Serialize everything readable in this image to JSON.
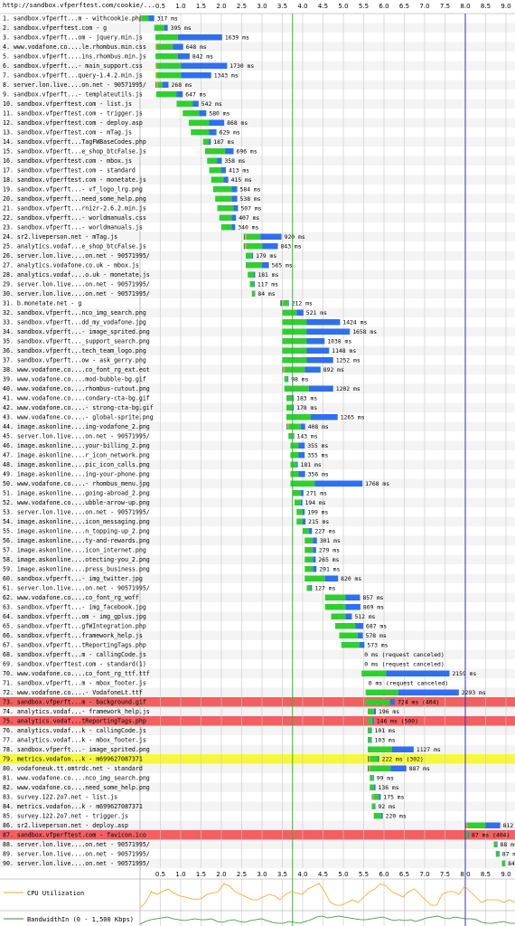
{
  "page_url": "http://sandbox.vfperftest.com/cookie/...",
  "timeline": {
    "ticks": [
      "0.5",
      "1.0",
      "1.5",
      "2.0",
      "2.5",
      "3.0",
      "3.5",
      "4.0",
      "4.5",
      "5.0",
      "5.5",
      "6.0",
      "6.5",
      "7.0",
      "7.5",
      "8.0",
      "8.5",
      "9.0"
    ],
    "start_render_s": 3.75,
    "doc_complete_s": 8.0,
    "max_s": 9.1
  },
  "colors": {
    "dns": "#1f8f8f",
    "connect": "#f7a21b",
    "ssl": "#b44ac8",
    "ttfb": "#2fcf2f",
    "download": "#2f6ff0",
    "error_row": "#f26060",
    "redirect_row": "#f7f740",
    "start_render_line": "#2fb82f",
    "doc_complete_line": "#2f2fb8",
    "cpu": "#f7a21b",
    "bandwidth": "#2f8f2f"
  },
  "chart_data": {
    "type": "waterfall",
    "x_unit": "s",
    "requests": [
      {
        "n": "1.",
        "label": "sandbox.vfperft...m - withcookie.php",
        "start": 0.0,
        "ttfb": 0.17,
        "dl": 0.14,
        "dns": 0.02,
        "con": 0.02,
        "dur": "317 ms"
      },
      {
        "n": "2.",
        "label": "sandbox.vfperftest.com - g",
        "start": 0.35,
        "ttfb": 0.25,
        "dl": 0.08,
        "dur": "395 ms"
      },
      {
        "n": "3.",
        "label": "sandbox.vfperft...om - jquery.min.js",
        "start": 0.38,
        "ttfb": 0.55,
        "dl": 1.09,
        "dur": "1639 ms"
      },
      {
        "n": "4.",
        "label": "www.vodafone.co....le.rhombus.min.css",
        "start": 0.38,
        "ttfb": 0.4,
        "dl": 0.25,
        "con": 0.03,
        "dur": "648 ms"
      },
      {
        "n": "5.",
        "label": "sandbox.vfperft....ins.rhombus.min.js",
        "start": 0.38,
        "ttfb": 0.55,
        "dl": 0.29,
        "dur": "842 ms"
      },
      {
        "n": "6.",
        "label": "sandbox.vfperft...- main_support.css",
        "start": 0.38,
        "ttfb": 0.6,
        "dl": 1.13,
        "con": 0.03,
        "dur": "1730 ms"
      },
      {
        "n": "7.",
        "label": "sandbox.vfperft...query-1.4.2.min.js",
        "start": 0.38,
        "ttfb": 0.6,
        "dl": 0.74,
        "con": 0.03,
        "dur": "1343 ms"
      },
      {
        "n": "8.",
        "label": "server.lon.live....on.net - 90571995/",
        "start": 0.38,
        "ttfb": 0.12,
        "dl": 0.15,
        "dns": 0.02,
        "con": 0.03,
        "dur": "268 ms"
      },
      {
        "n": "9.",
        "label": "sandbox.vfperft...- templateutils.js",
        "start": 0.4,
        "ttfb": 0.5,
        "dl": 0.15,
        "dur": "647 ms"
      },
      {
        "n": "10.",
        "label": "sandbox.vfperftest.com - list.js",
        "start": 0.9,
        "ttfb": 0.4,
        "dl": 0.14,
        "dur": "542 ms"
      },
      {
        "n": "11.",
        "label": "sandbox.vfperftest.com - trigger.js",
        "start": 1.05,
        "ttfb": 0.4,
        "dl": 0.18,
        "dur": "580 ms"
      },
      {
        "n": "12.",
        "label": "sandbox.vfperftest.com - deploy.asp",
        "start": 1.2,
        "ttfb": 0.5,
        "dl": 0.37,
        "dur": "868 ms"
      },
      {
        "n": "13.",
        "label": "sandbox.vfperftest.com - mTag.js",
        "start": 1.25,
        "ttfb": 0.45,
        "dl": 0.18,
        "dur": "629 ms"
      },
      {
        "n": "14.",
        "label": "sandbox.vfperft...TagFWBaseCodes.php",
        "start": 1.55,
        "ttfb": 0.15,
        "dl": 0.04,
        "dur": "187 ms"
      },
      {
        "n": "15.",
        "label": "sandbox.vfperft...e_shop_btcFalse.js",
        "start": 1.6,
        "ttfb": 0.5,
        "dl": 0.2,
        "dur": "696 ms"
      },
      {
        "n": "16.",
        "label": "sandbox.vfperftest.com - mbox.js",
        "start": 1.65,
        "ttfb": 0.25,
        "dl": 0.11,
        "dur": "358 ms"
      },
      {
        "n": "17.",
        "label": "sandbox.vfperftest.com - standard",
        "start": 1.7,
        "ttfb": 0.3,
        "dl": 0.11,
        "dur": "413 ms"
      },
      {
        "n": "18.",
        "label": "sandbox.vfperftest.com - monetate.js",
        "start": 1.75,
        "ttfb": 0.3,
        "dl": 0.12,
        "dur": "415 ms"
      },
      {
        "n": "19.",
        "label": "sandbox.vfperft...- vf_logo_lrg.png",
        "start": 1.8,
        "ttfb": 0.45,
        "dl": 0.14,
        "dur": "584 ms"
      },
      {
        "n": "20.",
        "label": "sandbox.vfperft...need_some_help.png",
        "start": 1.85,
        "ttfb": 0.4,
        "dl": 0.14,
        "dur": "538 ms"
      },
      {
        "n": "21.",
        "label": "sandbox.vfperft...rnizr-2.6.2.min.js",
        "start": 1.9,
        "ttfb": 0.4,
        "dl": 0.11,
        "dur": "507 ms"
      },
      {
        "n": "22.",
        "label": "sandbox.vfperft...- worldmanuals.css",
        "start": 1.95,
        "ttfb": 0.3,
        "dl": 0.11,
        "dur": "407 ms"
      },
      {
        "n": "23.",
        "label": "sandbox.vfperft...- worldmanuals.js",
        "start": 2.0,
        "ttfb": 0.25,
        "dl": 0.09,
        "dur": "340 ms"
      },
      {
        "n": "24.",
        "label": "sr2.liveperson.net - mTag.js",
        "start": 2.55,
        "ttfb": 0.35,
        "dl": 0.52,
        "dns": 0.03,
        "con": 0.03,
        "dur": "920 ms"
      },
      {
        "n": "25.",
        "label": "analytics.vodaf...e_shop_btcFalse.js",
        "start": 2.55,
        "ttfb": 0.4,
        "dl": 0.38,
        "dns": 0.03,
        "con": 0.03,
        "dur": "843 ms"
      },
      {
        "n": "26.",
        "label": "server.lon.live....on.net - 90571995/",
        "start": 2.6,
        "ttfb": 0.15,
        "dl": 0.03,
        "dur": "179 ms"
      },
      {
        "n": "27.",
        "label": "analytics.vodafone.co.uk - mbox.js",
        "start": 2.6,
        "ttfb": 0.4,
        "dl": 0.17,
        "dur": "565 ms"
      },
      {
        "n": "28.",
        "label": "analytics.vodaf....o.uk - monetate.js",
        "start": 2.65,
        "ttfb": 0.15,
        "dl": 0.03,
        "dur": "181 ms"
      },
      {
        "n": "29.",
        "label": "server.lon.live....on.net - 90571995/",
        "start": 2.7,
        "ttfb": 0.1,
        "dl": 0.02,
        "dur": "117 ms"
      },
      {
        "n": "30.",
        "label": "server.lon.live....on.net - 90571995/",
        "start": 2.75,
        "ttfb": 0.07,
        "dl": 0.01,
        "dur": "84 ms"
      },
      {
        "n": "31.",
        "label": "b.monetate.net - g",
        "start": 3.45,
        "ttfb": 0.12,
        "dl": 0.02,
        "dns": 0.04,
        "con": 0.03,
        "dur": "212 ms"
      },
      {
        "n": "32.",
        "label": "sandbox.vfperft...nco_img_search.png",
        "start": 3.5,
        "ttfb": 0.35,
        "dl": 0.17,
        "dur": "521 ms"
      },
      {
        "n": "33.",
        "label": "sandbox.vfperft...dd_my_vodafone.jpg",
        "start": 3.5,
        "ttfb": 0.6,
        "dl": 0.82,
        "dur": "1424 ms"
      },
      {
        "n": "34.",
        "label": "sandbox.vfperft...- image_sprited.png",
        "start": 3.5,
        "ttfb": 0.6,
        "dl": 1.06,
        "dur": "1658 ms"
      },
      {
        "n": "35.",
        "label": "sandbox.vfperft..._support_search.png",
        "start": 3.5,
        "ttfb": 0.6,
        "dl": 0.44,
        "dur": "1038 ms"
      },
      {
        "n": "36.",
        "label": "sandbox.vfperft...tech_team_logo.png",
        "start": 3.5,
        "ttfb": 0.6,
        "dl": 0.55,
        "dur": "1148 ms"
      },
      {
        "n": "37.",
        "label": "sandbox.vfperft...ow - ask_gerry.png",
        "start": 3.5,
        "ttfb": 0.6,
        "dl": 0.65,
        "dur": "1252 ms"
      },
      {
        "n": "38.",
        "label": "www.vodafone.co....co_font_rg_ext.eot",
        "start": 3.5,
        "ttfb": 0.5,
        "dl": 0.39,
        "dns": 0.02,
        "con": 0.03,
        "dur": "892 ms"
      },
      {
        "n": "39.",
        "label": "www.vodafone.co....mod-bubble-bg.gif",
        "start": 3.55,
        "ttfb": 0.08,
        "dl": 0.02,
        "dur": "98 ms"
      },
      {
        "n": "40.",
        "label": "www.vodafone.co....rhombus-cutout.png",
        "start": 3.55,
        "ttfb": 0.6,
        "dl": 0.6,
        "dur": "1202 ms"
      },
      {
        "n": "41.",
        "label": "www.vodafone.co....condary-cta-bg.gif",
        "start": 3.6,
        "ttfb": 0.15,
        "dl": 0.03,
        "dur": "183 ms"
      },
      {
        "n": "42.",
        "label": "www.vodafone.co....- strong-cta-bg.gif",
        "start": 3.6,
        "ttfb": 0.15,
        "dl": 0.03,
        "dur": "178 ms"
      },
      {
        "n": "43.",
        "label": "www.vodafone.co....- global-sprite.png",
        "start": 3.6,
        "ttfb": 0.6,
        "dl": 0.66,
        "dur": "1265 ms"
      },
      {
        "n": "44.",
        "label": "image.askonline....ing-vodafone_2.png",
        "start": 3.6,
        "ttfb": 0.3,
        "dl": 0.11,
        "dns": 0.02,
        "con": 0.03,
        "dur": "408 ms"
      },
      {
        "n": "45.",
        "label": "server.lon.live....on.net - 90571995/",
        "start": 3.65,
        "ttfb": 0.12,
        "dl": 0.02,
        "dur": "143 ms"
      },
      {
        "n": "46.",
        "label": "image.askonline....your-billing_2.png",
        "start": 3.7,
        "ttfb": 0.2,
        "dl": 0.15,
        "dur": "355 ms"
      },
      {
        "n": "47.",
        "label": "image.askonline....r_icon_network.png",
        "start": 3.7,
        "ttfb": 0.2,
        "dl": 0.15,
        "dur": "355 ms"
      },
      {
        "n": "48.",
        "label": "image.askonline....pic_icon_calls.png",
        "start": 3.7,
        "ttfb": 0.15,
        "dl": 0.03,
        "dur": "181 ms"
      },
      {
        "n": "49.",
        "label": "image.askonline....ing-your-phone.png",
        "start": 3.7,
        "ttfb": 0.2,
        "dl": 0.16,
        "dur": "356 ms"
      },
      {
        "n": "50.",
        "label": "www.vodafone.co....- rhombus_menu.jpg",
        "start": 3.7,
        "ttfb": 0.6,
        "dl": 1.17,
        "dur": "1768 ms"
      },
      {
        "n": "51.",
        "label": "image.askonline....going-abroad_2.png",
        "start": 3.75,
        "ttfb": 0.2,
        "dl": 0.07,
        "dur": "271 ms"
      },
      {
        "n": "52.",
        "label": "www.vodafone.co....ubble-arrow-up.png",
        "start": 3.8,
        "ttfb": 0.15,
        "dl": 0.04,
        "dur": "194 ms"
      },
      {
        "n": "53.",
        "label": "server.lon.live....on.net - 90571995/",
        "start": 3.85,
        "ttfb": 0.15,
        "dl": 0.05,
        "dur": "199 ms"
      },
      {
        "n": "54.",
        "label": "image.askonline....icon_messaging.png",
        "start": 3.85,
        "ttfb": 0.15,
        "dl": 0.07,
        "dur": "215 ms"
      },
      {
        "n": "55.",
        "label": "image.askonline....n_topping-up_2.png",
        "start": 4.0,
        "ttfb": 0.15,
        "dl": 0.08,
        "dur": "227 ms"
      },
      {
        "n": "56.",
        "label": "image.askonline....ty-and-rewards.png",
        "start": 4.05,
        "ttfb": 0.2,
        "dl": 0.1,
        "dur": "301 ms"
      },
      {
        "n": "57.",
        "label": "image.askonline....icon_internet.png",
        "start": 4.05,
        "ttfb": 0.2,
        "dl": 0.08,
        "dur": "279 ms"
      },
      {
        "n": "58.",
        "label": "image.askonline....otecting-you_2.png",
        "start": 4.05,
        "ttfb": 0.2,
        "dl": 0.07,
        "dur": "265 ms"
      },
      {
        "n": "59.",
        "label": "image.askonline....press_business.png",
        "start": 4.05,
        "ttfb": 0.2,
        "dl": 0.09,
        "dur": "291 ms"
      },
      {
        "n": "60.",
        "label": "sandbox.vfperft...- img_twitter.jpg",
        "start": 4.05,
        "ttfb": 0.5,
        "dl": 0.32,
        "dur": "820 ms"
      },
      {
        "n": "61.",
        "label": "server.lon.live....on.net - 90571995/",
        "start": 4.1,
        "ttfb": 0.1,
        "dl": 0.03,
        "dur": "127 ms"
      },
      {
        "n": "62.",
        "label": "www.vodafone.co....co_font_rg_woff",
        "start": 4.55,
        "ttfb": 0.5,
        "dl": 0.36,
        "dur": "857 ms"
      },
      {
        "n": "63.",
        "label": "sandbox.vfperft...- img_facebook.jpg",
        "start": 4.55,
        "ttfb": 0.5,
        "dl": 0.37,
        "dur": "869 ms"
      },
      {
        "n": "64.",
        "label": "sandbox.vfperft...om - img_gplus.jpg",
        "start": 4.7,
        "ttfb": 0.35,
        "dl": 0.16,
        "dur": "512 ms"
      },
      {
        "n": "65.",
        "label": "sandbox.vfperft...gfWIntegration.php",
        "start": 4.8,
        "ttfb": 0.5,
        "dl": 0.19,
        "dur": "687 ms"
      },
      {
        "n": "66.",
        "label": "sandbox.vfperft...framework_help.js",
        "start": 4.9,
        "ttfb": 0.45,
        "dl": 0.13,
        "dur": "578 ms"
      },
      {
        "n": "67.",
        "label": "sandbox.vfperft...tReportingTags.php",
        "start": 4.95,
        "ttfb": 0.45,
        "dl": 0.12,
        "dur": "573 ms"
      },
      {
        "n": "68.",
        "label": "sandbox.vfperft...m - callingCode.js",
        "start": 5.45,
        "ttfb": 0,
        "dl": 0,
        "dur": "0 ms (request canceled)"
      },
      {
        "n": "69.",
        "label": "sandbox.vfperftest.com - standard(1)",
        "start": 5.45,
        "ttfb": 0,
        "dl": 0,
        "dur": "0 ms (request canceled)"
      },
      {
        "n": "70.",
        "label": "www.vodafone.co....co_font_rg_ttf.ttf",
        "start": 5.45,
        "ttfb": 0.6,
        "dl": 1.56,
        "dur": "2159 ms"
      },
      {
        "n": "71.",
        "label": "sandbox.vfperft...m - mbox_footer.js",
        "start": 5.55,
        "ttfb": 0,
        "dl": 0,
        "dur": "0 ms (request canceled)"
      },
      {
        "n": "72.",
        "label": "www.vodafone.co....- VodafoneLt.ttf",
        "start": 5.55,
        "ttfb": 0.8,
        "dl": 1.49,
        "dur": "2293 ms"
      },
      {
        "n": "73.",
        "label": "sandbox.vfperft...m - background.gif",
        "start": 5.55,
        "ttfb": 0.6,
        "dl": 0.12,
        "dur": "724 ms (404)",
        "row": "error"
      },
      {
        "n": "74.",
        "label": "analytics.vodaf...- framework_help.js",
        "start": 5.6,
        "ttfb": 0.15,
        "dl": 0.05,
        "dur": "196 ms"
      },
      {
        "n": "75.",
        "label": "analytics.vodaf...tReportingTags.php",
        "start": 5.6,
        "ttfb": 0.12,
        "dl": 0.03,
        "dur": "146 ms (500)",
        "row": "error"
      },
      {
        "n": "76.",
        "label": "analytics.vodaf...k - callingCode.js",
        "start": 5.6,
        "ttfb": 0.08,
        "dl": 0.02,
        "dur": "101 ms"
      },
      {
        "n": "77.",
        "label": "analytics.vodaf...k - mbox_footer.js",
        "start": 5.6,
        "ttfb": 0.08,
        "dl": 0.02,
        "dur": "103 ms"
      },
      {
        "n": "78.",
        "label": "sandbox.vfperft...- image_sprited.png",
        "start": 5.6,
        "ttfb": 0.6,
        "dl": 0.53,
        "dur": "1127 ms"
      },
      {
        "n": "79.",
        "label": "metrics.vodafon...k - m699627087371",
        "start": 5.6,
        "ttfb": 0.18,
        "dl": 0.04,
        "dns": 0.03,
        "con": 0.03,
        "dur": "222 ms (302)",
        "row": "redirect"
      },
      {
        "n": "80.",
        "label": "vodafoneuk.tt.omtrdc.net - standard",
        "start": 5.6,
        "ttfb": 0.5,
        "dl": 0.39,
        "dns": 0.03,
        "con": 0.03,
        "dur": "887 ms"
      },
      {
        "n": "81.",
        "label": "www.vodafone.co....nco_img_search.png",
        "start": 5.65,
        "ttfb": 0.08,
        "dl": 0.02,
        "dur": "99 ms"
      },
      {
        "n": "82.",
        "label": "www.vodafone.co....need_some_help.png",
        "start": 5.65,
        "ttfb": 0.1,
        "dl": 0.04,
        "dur": "136 ms"
      },
      {
        "n": "83.",
        "label": "survey.122.2o7.net - list.js",
        "start": 5.7,
        "ttfb": 0.14,
        "dl": 0.04,
        "dns": 0.02,
        "con": 0.02,
        "dur": "175 ms"
      },
      {
        "n": "84.",
        "label": "metrics.vodafon...k - m699627087371",
        "start": 5.7,
        "ttfb": 0.08,
        "dl": 0.01,
        "dur": "92 ms"
      },
      {
        "n": "85.",
        "label": "survey.122.2o7.net - trigger.js",
        "start": 5.75,
        "ttfb": 0.18,
        "dl": 0.04,
        "dur": "220 ms"
      },
      {
        "n": "86.",
        "label": "sr2.liveperson.net - deploy.asp",
        "start": 8.0,
        "ttfb": 0.45,
        "dl": 0.36,
        "dns": 0.02,
        "con": 0.03,
        "dur": "812 ms"
      },
      {
        "n": "87.",
        "label": "sandbox.vfperftest.com - favicon.ico",
        "start": 8.0,
        "ttfb": 0.07,
        "dl": 0.02,
        "dur": "87 ms (404)",
        "row": "error"
      },
      {
        "n": "88.",
        "label": "server.lon.live....on.net - 90571995/",
        "start": 8.7,
        "ttfb": 0.07,
        "dl": 0.02,
        "dur": "88 ms"
      },
      {
        "n": "89.",
        "label": "server.lon.live....on.net - 90571995/",
        "start": 8.75,
        "ttfb": 0.07,
        "dl": 0.02,
        "dur": "87 ms"
      },
      {
        "n": "90.",
        "label": "server.lon.live....on.net - 90571995/",
        "start": 8.9,
        "ttfb": 0.07,
        "dl": 0.01,
        "dur": "84 ms"
      }
    ],
    "cpu_label": "CPU Utilization",
    "bandwidth_label": "BandwidthIn (0 - 1,500 Kbps)",
    "cpu": [
      0,
      0.2,
      0.6,
      0.5,
      0.6,
      0.7,
      0.55,
      0.45,
      0.4,
      0.35,
      0.3,
      0.35,
      0.5,
      0.55,
      0.6,
      0.9,
      0.8,
      0.6,
      0.5,
      0.4,
      0.3,
      0.3,
      0.4,
      0.5,
      0.45,
      0.3,
      0.5,
      0.6,
      0.55,
      0.5,
      0.7,
      0.8,
      0.9,
      0.6,
      0.2,
      0.1,
      0.1,
      0.2,
      0.3,
      0.2,
      0.4,
      0.6,
      0.7,
      0.9,
      0.8,
      0.6,
      0.5,
      0.4,
      0.6,
      0.7,
      0.5,
      0.3,
      0.1,
      0.1,
      0.5,
      0.6,
      0.6,
      0.5,
      0.8,
      0.6,
      0.4,
      0.2,
      0.3,
      0.3,
      0.3,
      0.2,
      0.3,
      0.2
    ],
    "bandwidth": [
      0,
      0.3,
      0.5,
      0.6,
      0.7,
      0.8,
      0.6,
      0.5,
      0.4,
      0.5,
      0.6,
      0.5,
      0.5,
      0.6,
      0.3,
      0.2,
      0.4,
      0.5,
      0.3,
      0.2,
      0.4,
      0.5,
      0.6,
      0.4,
      0.2,
      0.1,
      0.1,
      0.3,
      0.2,
      0.1,
      0.3,
      0.5,
      0.8,
      0.9,
      0.7,
      0.8,
      0.9,
      0.8,
      0.7,
      0.6,
      0.5,
      0.5,
      0.6,
      0.7,
      0.8,
      0.6,
      0.4,
      0.5,
      0.4,
      0.5,
      0.3,
      0.5,
      0.7,
      0.8,
      0.9,
      0.7,
      0.6,
      0.8,
      0.7,
      0.6,
      0.6,
      0.5,
      0.2,
      0.1,
      0.1,
      0.2,
      0.3,
      0.1,
      0.1
    ]
  }
}
